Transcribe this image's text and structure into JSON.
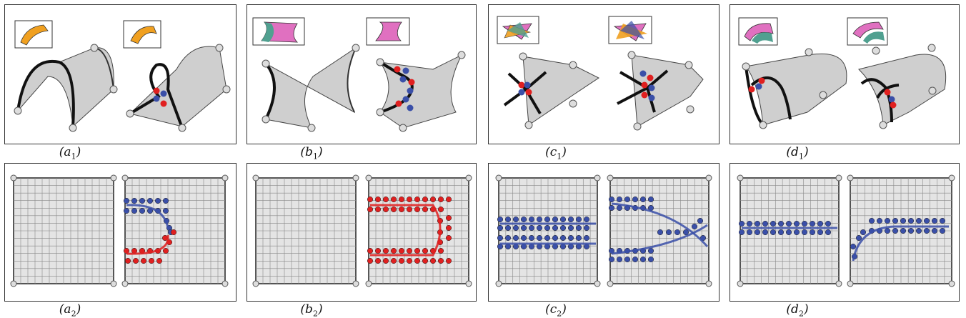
{
  "figure": {
    "captions": {
      "a1": {
        "letter": "a",
        "sub": "1"
      },
      "b1": {
        "letter": "b",
        "sub": "1"
      },
      "c1": {
        "letter": "c",
        "sub": "1"
      },
      "d1": {
        "letter": "d",
        "sub": "1"
      },
      "a2": {
        "letter": "a",
        "sub": "2"
      },
      "b2": {
        "letter": "b",
        "sub": "2"
      },
      "c2": {
        "letter": "c",
        "sub": "2"
      },
      "d2": {
        "letter": "d",
        "sub": "2"
      }
    },
    "colors": {
      "red_dot": "#e02020",
      "blue_dot": "#3a4fa8",
      "grid_fill": "#e4e4e4",
      "surface_gray": "#c8c8c8",
      "inset_orange": "#f0a020",
      "inset_pink": "#e070c0",
      "inset_teal": "#50a090"
    }
  }
}
